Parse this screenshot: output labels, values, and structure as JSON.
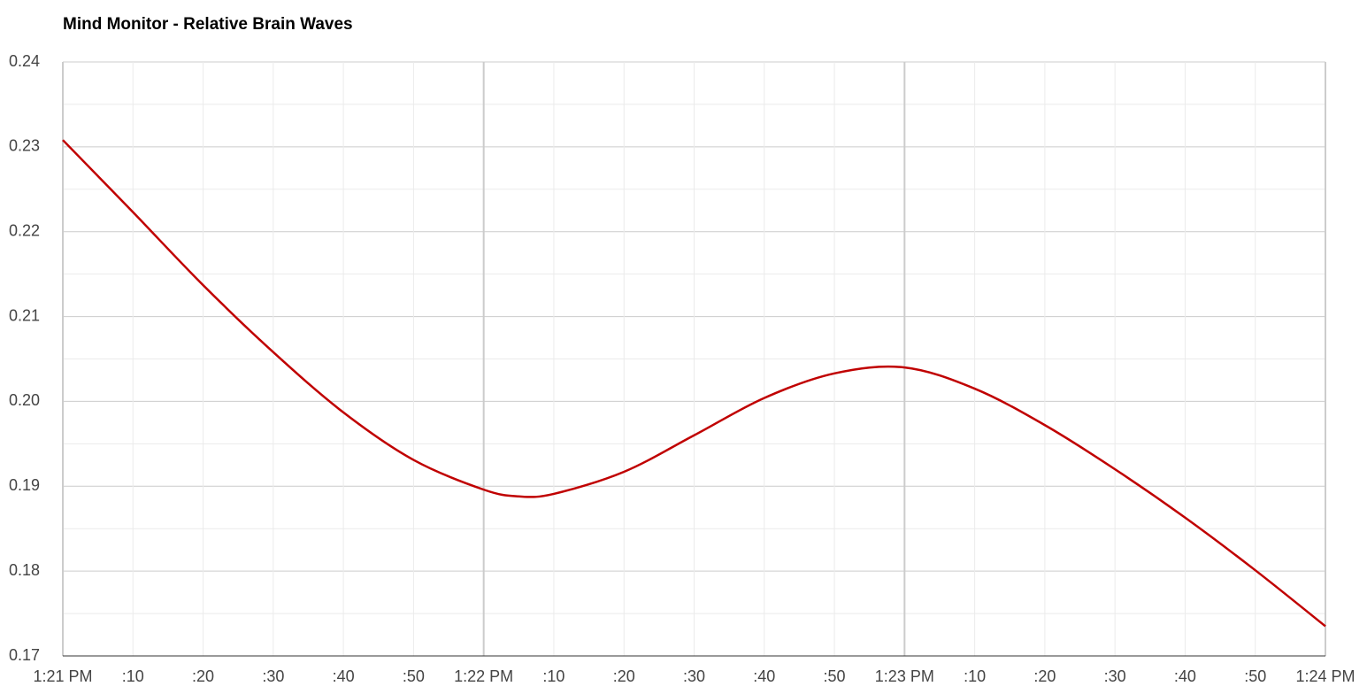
{
  "chart_data": {
    "type": "line",
    "title": "Mind Monitor - Relative Brain Waves",
    "x": [
      0,
      10,
      20,
      30,
      40,
      50,
      60,
      65,
      70,
      80,
      90,
      100,
      110,
      120,
      130,
      140,
      150,
      160,
      170,
      180
    ],
    "series": [
      {
        "color": "#c00000",
        "values": [
          0.2308,
          0.2223,
          0.2137,
          0.2058,
          0.1987,
          0.1931,
          0.1896,
          0.1888,
          0.1891,
          0.1917,
          0.196,
          0.2004,
          0.2033,
          0.204,
          0.2015,
          0.1972,
          0.192,
          0.1863,
          0.1801,
          0.1735
        ]
      }
    ],
    "xlim": [
      0,
      180
    ],
    "xticks": [
      {
        "value": 0,
        "label": "1:21 PM"
      },
      {
        "value": 10,
        "label": ":10"
      },
      {
        "value": 20,
        "label": ":20"
      },
      {
        "value": 30,
        "label": ":30"
      },
      {
        "value": 40,
        "label": ":40"
      },
      {
        "value": 50,
        "label": ":50"
      },
      {
        "value": 60,
        "label": "1:22 PM"
      },
      {
        "value": 70,
        "label": ":10"
      },
      {
        "value": 80,
        "label": ":20"
      },
      {
        "value": 90,
        "label": ":30"
      },
      {
        "value": 100,
        "label": ":40"
      },
      {
        "value": 110,
        "label": ":50"
      },
      {
        "value": 120,
        "label": "1:23 PM"
      },
      {
        "value": 130,
        "label": ":10"
      },
      {
        "value": 140,
        "label": ":20"
      },
      {
        "value": 150,
        "label": ":30"
      },
      {
        "value": 160,
        "label": ":40"
      },
      {
        "value": 170,
        "label": ":50"
      },
      {
        "value": 180,
        "label": "1:24 PM"
      }
    ],
    "ylim": [
      0.17,
      0.24
    ],
    "yticks": [
      {
        "value": 0.17,
        "label": "0.17"
      },
      {
        "value": 0.18,
        "label": "0.18"
      },
      {
        "value": 0.19,
        "label": "0.19"
      },
      {
        "value": 0.2,
        "label": "0.20"
      },
      {
        "value": 0.21,
        "label": "0.21"
      },
      {
        "value": 0.22,
        "label": "0.22"
      },
      {
        "value": 0.23,
        "label": "0.23"
      },
      {
        "value": 0.24,
        "label": "0.24"
      }
    ],
    "grid": true
  }
}
